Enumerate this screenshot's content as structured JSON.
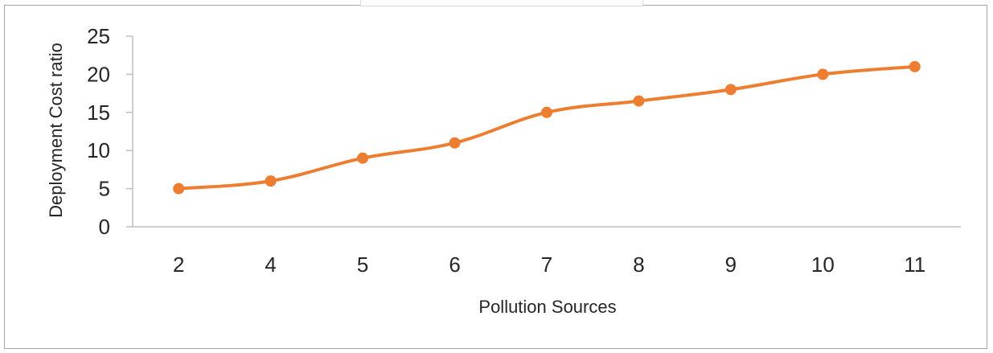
{
  "chart_data": {
    "type": "line",
    "title": "",
    "xlabel": "Pollution Sources",
    "ylabel": "Deployment Cost ratio",
    "categories": [
      "2",
      "4",
      "5",
      "6",
      "7",
      "8",
      "9",
      "10",
      "11"
    ],
    "series": [
      {
        "values": [
          5,
          6,
          9,
          11,
          15,
          16.5,
          18,
          20,
          21
        ],
        "color": "#ed7d31"
      }
    ],
    "ylim": [
      0,
      25
    ],
    "yticks": [
      "0",
      "5",
      "10",
      "15",
      "20",
      "25"
    ],
    "grid": false,
    "legend": "none",
    "smooth": true,
    "markers": true
  }
}
